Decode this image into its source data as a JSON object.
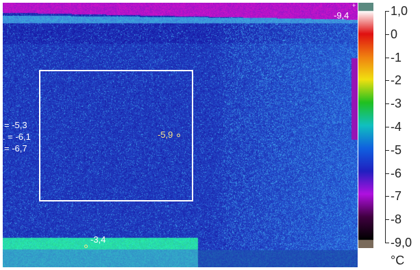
{
  "image": {
    "description_icon": "thermal-camera-view"
  },
  "overlay": {
    "max_marker": "-9,4",
    "spot_center": "-5,9",
    "spot_bottom": "-3,4",
    "stats": [
      {
        "prefix": "=",
        "value": "-5,3"
      },
      {
        "prefix": ". =",
        "value": "-6,1"
      },
      {
        "prefix": "=",
        "value": "-6,7"
      }
    ]
  },
  "scale": {
    "ticks": [
      "1,0",
      "0",
      "-1",
      "-2",
      "-3",
      "-4",
      "-5",
      "-6",
      "-7",
      "-8",
      "-9,0"
    ],
    "unit": "°C",
    "colors": [
      "#ffffff",
      "#e01010",
      "#f08010",
      "#f0e010",
      "#20c020",
      "#10c0c0",
      "#1060e0",
      "#2020c0",
      "#b010e0",
      "#400040",
      "#000000"
    ]
  }
}
